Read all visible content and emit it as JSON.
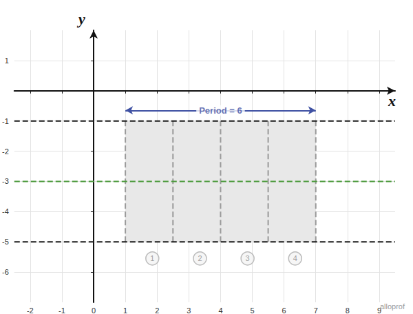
{
  "chart_data": {
    "type": "line",
    "xlabel": "x",
    "ylabel": "y",
    "xlim": [
      -2.5,
      9.5
    ],
    "ylim": [
      -7,
      2
    ],
    "xticks": [
      -2,
      -1,
      0,
      1,
      2,
      3,
      4,
      5,
      6,
      7,
      8,
      9
    ],
    "yticks": [
      -6,
      -5,
      -4,
      -3,
      -2,
      -1,
      1
    ],
    "grid": true,
    "reference_lines": [
      {
        "y": -1,
        "color": "#1a1a1a",
        "line_style": "dashed"
      },
      {
        "y": -5,
        "color": "#1a1a1a",
        "line_style": "dashed"
      },
      {
        "y": -3,
        "color": "#4c9a3c",
        "line_style": "dashed"
      }
    ],
    "shaded_region": {
      "x": [
        1,
        7
      ],
      "y": [
        -5,
        -1
      ],
      "color": "#e8e8e8"
    },
    "dividers": {
      "x": [
        1,
        2.5,
        4,
        5.5,
        7
      ],
      "color": "#9a9a9a",
      "line_style": "dashed"
    },
    "segment_labels": {
      "x": [
        1.85,
        3.35,
        4.85,
        6.35
      ],
      "y": -5.55,
      "values": [
        1,
        2,
        3,
        4
      ],
      "color": "#aaaaaa"
    },
    "period_arrow": {
      "x": [
        1,
        7
      ],
      "y": -0.65,
      "label": "Period = 6",
      "color": "#3f51a3"
    },
    "watermark": "alloprof"
  }
}
